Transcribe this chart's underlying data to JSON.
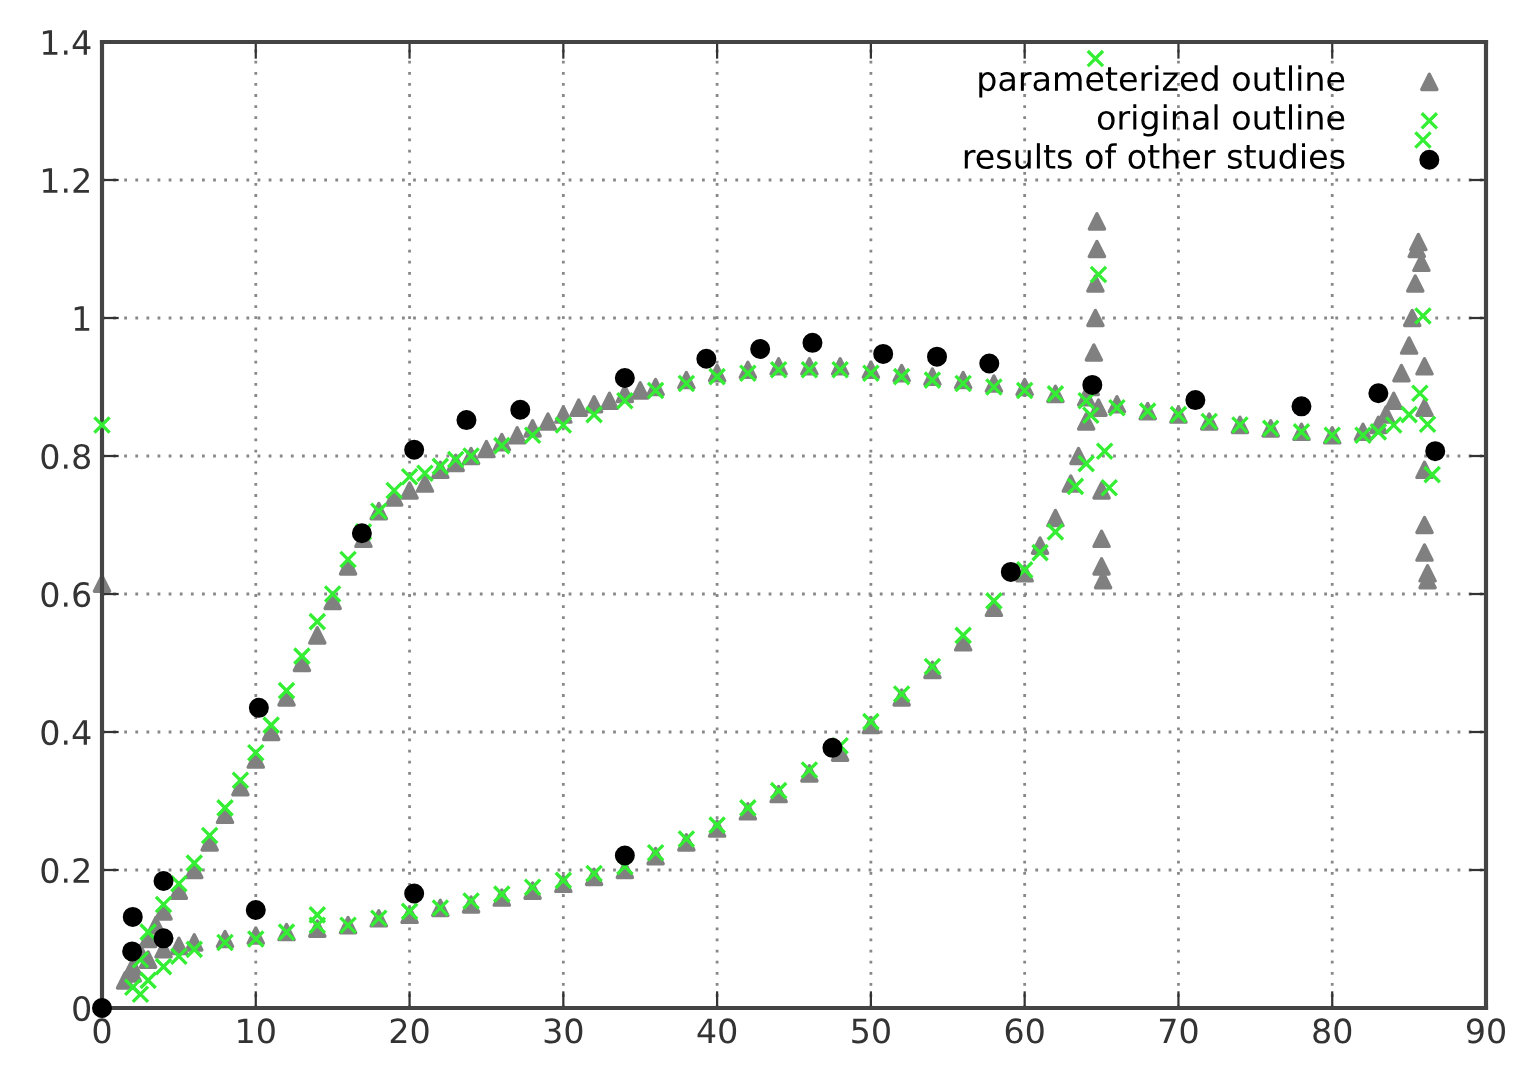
{
  "chart_data": {
    "type": "scatter",
    "xlim": [
      0,
      90
    ],
    "ylim": [
      0,
      1.4
    ],
    "xticks": [
      0,
      10,
      20,
      30,
      40,
      50,
      60,
      70,
      80,
      90
    ],
    "yticks": [
      0,
      0.2,
      0.4,
      0.6,
      0.8,
      1,
      1.2,
      1.4
    ],
    "grid": true,
    "legend": "top right",
    "series": [
      {
        "name": "parameterized outline",
        "color": "#808080",
        "marker": "triangle",
        "x": [
          0,
          1.5,
          2,
          2.5,
          3,
          3.5,
          4,
          5,
          6,
          7,
          8,
          9,
          10,
          11,
          12,
          13,
          14,
          15,
          16,
          17,
          18,
          19,
          20,
          21,
          22,
          23,
          24,
          25,
          26,
          27,
          28,
          29,
          30,
          31,
          32,
          33,
          34,
          35,
          36,
          38,
          40,
          42,
          44,
          46,
          48,
          50,
          52,
          54,
          56,
          58,
          60,
          62,
          64,
          66,
          68,
          70,
          72,
          74,
          76,
          78,
          80,
          82,
          83,
          83.5,
          84,
          84.5,
          85,
          85.2,
          85.4,
          85.5,
          85.6,
          85.8,
          86,
          86,
          86,
          86,
          86,
          86.2,
          86.2,
          2,
          3,
          4,
          5,
          6,
          8,
          10,
          12,
          14,
          16,
          18,
          20,
          22,
          24,
          26,
          28,
          30,
          32,
          34,
          36,
          38,
          40,
          42,
          44,
          46,
          48,
          50,
          52,
          54,
          56,
          58,
          60,
          61,
          62,
          63,
          63.5,
          64,
          64.3,
          64.5,
          64.6,
          64.6,
          64.7,
          64.7,
          64.8,
          65,
          65,
          65,
          65.1
        ],
        "values": [
          0.615,
          0.04,
          0.06,
          0.08,
          0.1,
          0.12,
          0.14,
          0.17,
          0.2,
          0.24,
          0.28,
          0.32,
          0.36,
          0.4,
          0.45,
          0.5,
          0.54,
          0.59,
          0.64,
          0.68,
          0.72,
          0.74,
          0.75,
          0.76,
          0.78,
          0.79,
          0.8,
          0.81,
          0.82,
          0.83,
          0.84,
          0.85,
          0.86,
          0.87,
          0.875,
          0.88,
          0.89,
          0.895,
          0.9,
          0.91,
          0.92,
          0.925,
          0.93,
          0.93,
          0.93,
          0.925,
          0.92,
          0.915,
          0.91,
          0.905,
          0.9,
          0.89,
          0.885,
          0.875,
          0.865,
          0.86,
          0.85,
          0.845,
          0.84,
          0.835,
          0.83,
          0.835,
          0.845,
          0.86,
          0.88,
          0.92,
          0.96,
          1.0,
          1.05,
          1.1,
          1.11,
          1.08,
          0.93,
          0.87,
          0.78,
          0.7,
          0.66,
          0.63,
          0.62,
          0.05,
          0.07,
          0.085,
          0.09,
          0.095,
          0.1,
          0.105,
          0.11,
          0.115,
          0.12,
          0.13,
          0.135,
          0.145,
          0.15,
          0.16,
          0.17,
          0.18,
          0.19,
          0.2,
          0.22,
          0.24,
          0.26,
          0.285,
          0.31,
          0.34,
          0.37,
          0.41,
          0.45,
          0.49,
          0.53,
          0.58,
          0.63,
          0.67,
          0.71,
          0.76,
          0.8,
          0.85,
          0.9,
          0.95,
          1.0,
          1.05,
          1.1,
          1.14,
          0.87,
          0.75,
          0.68,
          0.64,
          0.62
        ]
      },
      {
        "name": "original outline",
        "color": "#33ee33",
        "marker": "cross",
        "x": [
          0,
          2,
          2.5,
          3,
          4,
          5,
          6,
          7,
          8,
          9,
          10,
          11,
          12,
          13,
          14,
          15,
          16,
          17,
          18,
          19,
          20,
          21,
          22,
          23,
          24,
          26,
          28,
          30,
          32,
          34,
          36,
          38,
          40,
          42,
          44,
          46,
          48,
          50,
          52,
          54,
          56,
          58,
          60,
          62,
          64,
          66,
          68,
          70,
          72,
          74,
          76,
          78,
          80,
          82,
          83,
          84,
          85,
          85.7,
          85.9,
          85.9,
          86.2,
          86.5,
          2.5,
          3,
          4,
          5,
          6,
          8,
          10,
          12,
          14,
          14,
          16,
          18,
          20,
          22,
          24,
          26,
          28,
          30,
          32,
          34,
          36,
          38,
          40,
          42,
          44,
          46,
          48,
          50,
          52,
          54,
          56,
          58,
          60,
          61,
          62,
          63.3,
          64,
          64.3,
          64.8,
          64.6,
          65.2,
          65.5
        ],
        "values": [
          0.845,
          0.03,
          0.07,
          0.11,
          0.15,
          0.18,
          0.21,
          0.25,
          0.29,
          0.33,
          0.37,
          0.41,
          0.46,
          0.51,
          0.56,
          0.6,
          0.65,
          0.69,
          0.72,
          0.75,
          0.77,
          0.775,
          0.785,
          0.795,
          0.8,
          0.815,
          0.83,
          0.845,
          0.86,
          0.88,
          0.895,
          0.905,
          0.915,
          0.92,
          0.925,
          0.925,
          0.925,
          0.92,
          0.915,
          0.91,
          0.905,
          0.9,
          0.895,
          0.89,
          0.88,
          0.87,
          0.865,
          0.86,
          0.85,
          0.845,
          0.84,
          0.835,
          0.83,
          0.83,
          0.835,
          0.845,
          0.86,
          0.891,
          1.003,
          1.258,
          0.846,
          0.773,
          0.02,
          0.04,
          0.06,
          0.075,
          0.085,
          0.095,
          0.1,
          0.11,
          0.12,
          0.135,
          0.12,
          0.13,
          0.14,
          0.145,
          0.155,
          0.165,
          0.175,
          0.185,
          0.195,
          0.205,
          0.225,
          0.245,
          0.265,
          0.29,
          0.315,
          0.345,
          0.38,
          0.415,
          0.455,
          0.495,
          0.54,
          0.59,
          0.635,
          0.66,
          0.69,
          0.756,
          0.789,
          0.859,
          1.063,
          1.376,
          0.807,
          0.754
        ]
      },
      {
        "name": "results of other studies",
        "color": "#000000",
        "marker": "circle",
        "x": [
          0,
          1.96,
          2,
          4,
          4,
          10,
          10.2,
          16.9,
          20.3,
          20.3,
          23.7,
          27.2,
          34,
          34,
          39.3,
          42.8,
          46.2,
          47.5,
          50.8,
          54.3,
          57.7,
          59.1,
          64.4,
          71.1,
          78,
          83,
          86.7
        ],
        "values": [
          0,
          0.082,
          0.132,
          0.184,
          0.101,
          0.142,
          0.435,
          0.688,
          0.809,
          0.166,
          0.852,
          0.867,
          0.913,
          0.221,
          0.941,
          0.955,
          0.964,
          0.377,
          0.948,
          0.944,
          0.934,
          0.632,
          0.903,
          0.881,
          0.872,
          0.891,
          0.807
        ]
      }
    ]
  }
}
